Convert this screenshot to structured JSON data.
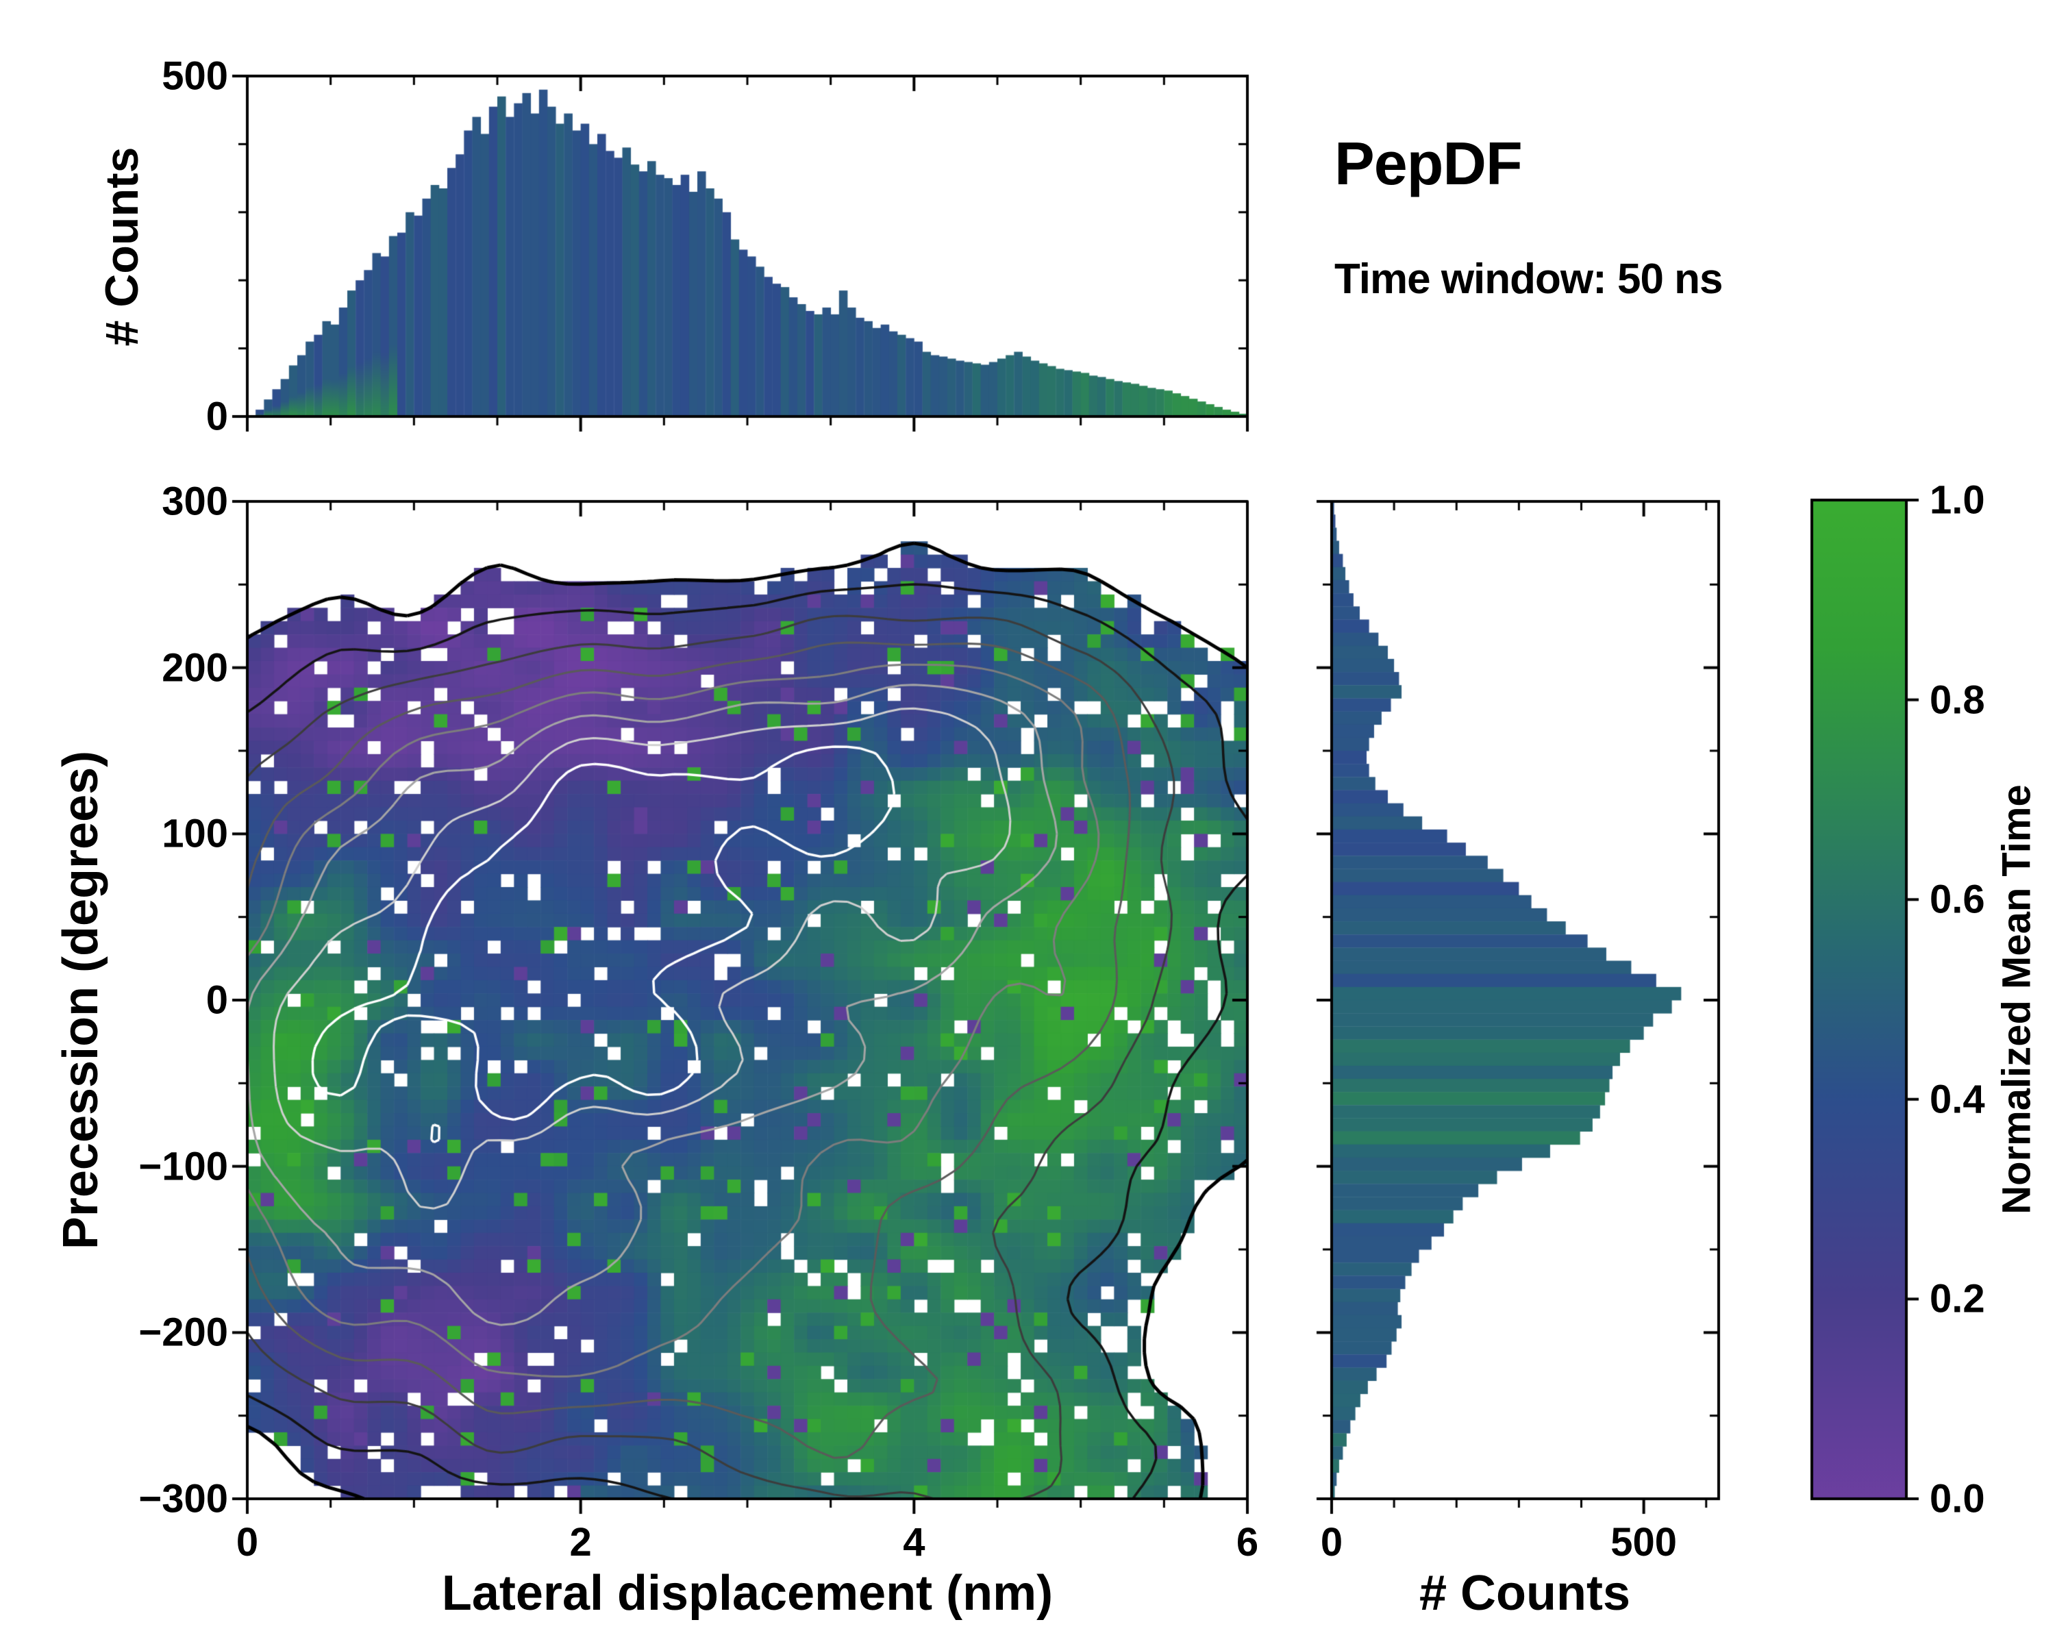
{
  "figure": {
    "title": "PepDF",
    "subtitle": "Time window: 50 ns",
    "background": "#ffffff"
  },
  "colors": {
    "spine": "#000000",
    "histogram_base": "#2d4e8c",
    "colormap_stops": [
      [
        0.0,
        "#6c3fa0"
      ],
      [
        0.2,
        "#483e8c"
      ],
      [
        0.4,
        "#2d4e8c"
      ],
      [
        0.55,
        "#286973"
      ],
      [
        0.7,
        "#2d8755"
      ],
      [
        0.85,
        "#32a037"
      ],
      [
        1.0,
        "#3aac32"
      ]
    ]
  },
  "colorbar": {
    "label": "Normalized Mean Time",
    "ticks": [
      "1.0",
      "0.8",
      "0.6",
      "0.4",
      "0.2",
      "0.0"
    ],
    "range": [
      0,
      1
    ]
  },
  "axes": {
    "top": {
      "ylabel": "# Counts",
      "yticks": [
        "500",
        "0"
      ],
      "xlim": [
        0,
        6
      ],
      "ylim": [
        0,
        500
      ]
    },
    "main": {
      "xlabel": "Lateral displacement (nm)",
      "ylabel": "Precession (degrees)",
      "xticks": [
        "0",
        "2",
        "4",
        "6"
      ],
      "yticks": [
        "300",
        "200",
        "100",
        "0",
        "−100",
        "−200",
        "−300"
      ],
      "xlim": [
        0,
        6
      ],
      "ylim": [
        -300,
        300
      ]
    },
    "right": {
      "xlabel": "# Counts",
      "xticks": [
        "0",
        "500"
      ],
      "xlim": [
        0,
        620
      ],
      "xtick_values": [
        0,
        500
      ]
    }
  },
  "chart_data": [
    {
      "type": "bar",
      "name": "top-marginal-histogram",
      "title": "",
      "xlabel": "Lateral displacement (nm)",
      "ylabel": "# Counts",
      "xlim": [
        0,
        6
      ],
      "ylim": [
        0,
        500
      ],
      "x_start": 0,
      "bin_width": 0.05,
      "values": [
        2,
        10,
        25,
        40,
        55,
        75,
        90,
        110,
        120,
        140,
        135,
        160,
        185,
        200,
        215,
        240,
        235,
        265,
        270,
        300,
        295,
        320,
        340,
        335,
        365,
        385,
        420,
        440,
        415,
        455,
        470,
        440,
        460,
        475,
        445,
        480,
        455,
        430,
        445,
        420,
        430,
        400,
        415,
        390,
        380,
        395,
        370,
        360,
        375,
        355,
        350,
        340,
        355,
        330,
        360,
        335,
        320,
        300,
        260,
        245,
        235,
        220,
        205,
        195,
        190,
        175,
        165,
        155,
        150,
        160,
        150,
        185,
        160,
        145,
        140,
        130,
        135,
        125,
        120,
        115,
        110,
        95,
        90,
        88,
        85,
        82,
        80,
        78,
        76,
        80,
        85,
        90,
        95,
        88,
        82,
        78,
        74,
        70,
        68,
        66,
        64,
        60,
        58,
        55,
        52,
        50,
        48,
        45,
        42,
        40,
        38,
        34,
        30,
        26,
        22,
        18,
        14,
        10,
        7,
        4
      ],
      "color_rule": {
        "base": 0.44,
        "jitter": 0.06,
        "tail_green_start": 3.9,
        "tail_green_gain": 0.33,
        "base_green_until": 0.9,
        "base_green_amount": 0.28
      }
    },
    {
      "type": "heatmap",
      "name": "joint-distribution-2d-histogram",
      "xlabel": "Lateral displacement (nm)",
      "ylabel": "Precession (degrees)",
      "value_label": "Normalized Mean Time",
      "xlim": [
        0,
        6
      ],
      "ylim": [
        -300,
        300
      ],
      "value_range": [
        0,
        1
      ],
      "bins": [
        75,
        75
      ],
      "seed": 7,
      "mask_threshold": 0.18,
      "density_noise_amp": 0.13,
      "density_blobs": [
        [
          1.8,
          0,
          1.5,
          120,
          1.0
        ],
        [
          2.5,
          140,
          1.6,
          55,
          0.45
        ],
        [
          4.6,
          30,
          1.1,
          110,
          0.55
        ],
        [
          4.3,
          170,
          1.0,
          60,
          0.35
        ],
        [
          1.3,
          -200,
          1.0,
          70,
          0.45
        ],
        [
          3.6,
          -220,
          1.1,
          80,
          0.4
        ],
        [
          4.6,
          -290,
          0.9,
          50,
          0.3
        ],
        [
          0.3,
          -60,
          0.5,
          90,
          0.4
        ],
        [
          1.35,
          35,
          0.18,
          22,
          0.18
        ],
        [
          1.9,
          -15,
          0.2,
          25,
          0.2
        ],
        [
          2.45,
          -30,
          0.18,
          22,
          0.16
        ],
        [
          1.15,
          -85,
          0.16,
          20,
          0.15
        ],
        [
          1.6,
          -60,
          0.15,
          18,
          0.14
        ],
        [
          2.2,
          55,
          0.15,
          20,
          0.14
        ]
      ],
      "value_base": 0.4,
      "value_noise_amp": 0.26,
      "color_regions": [
        [
          0.2,
          -60,
          0.45,
          80,
          0.5
        ],
        [
          4.9,
          30,
          0.9,
          100,
          0.45
        ],
        [
          3.7,
          -240,
          1.3,
          80,
          0.22
        ],
        [
          4.8,
          -295,
          0.8,
          40,
          0.22
        ],
        [
          1.2,
          185,
          1.3,
          70,
          -0.28
        ],
        [
          1.2,
          -215,
          0.9,
          55,
          -0.33
        ],
        [
          2.8,
          200,
          1.5,
          50,
          -0.15
        ],
        [
          3.2,
          -150,
          0.8,
          60,
          0.12
        ]
      ],
      "speckle": {
        "green_prob": 0.03,
        "purple_prob": 0.025,
        "hole_prob_low": 0.14,
        "hole_prob_mid": 0.08,
        "hole_prob_high": 0.045
      },
      "contour_levels": [
        {
          "level": 0.18,
          "color": "#000000",
          "lw": 5
        },
        {
          "level": 0.3,
          "color": "#141414",
          "lw": 3.5
        },
        {
          "level": 0.45,
          "color": "#3c3c3c",
          "lw": 3
        },
        {
          "level": 0.58,
          "color": "#5a5a5a",
          "lw": 3
        },
        {
          "level": 0.7,
          "color": "#7d7d7d",
          "lw": 3
        },
        {
          "level": 0.82,
          "color": "#a5a5a5",
          "lw": 3
        },
        {
          "level": 0.93,
          "color": "#cfcfcf",
          "lw": 3
        },
        {
          "level": 1.03,
          "color": "#ffffff",
          "lw": 3.5
        }
      ]
    },
    {
      "type": "bar",
      "orientation": "horizontal",
      "name": "right-marginal-histogram",
      "xlabel": "# Counts",
      "ylabel": "Precession (degrees)",
      "xlim": [
        0,
        620
      ],
      "ylim": [
        -300,
        300
      ],
      "y_start": 300,
      "bin_width": 8,
      "values": [
        4,
        6,
        8,
        12,
        18,
        22,
        28,
        35,
        45,
        60,
        75,
        90,
        100,
        108,
        112,
        95,
        80,
        68,
        60,
        56,
        60,
        70,
        90,
        115,
        145,
        185,
        215,
        250,
        275,
        300,
        320,
        345,
        375,
        410,
        440,
        480,
        520,
        560,
        545,
        515,
        500,
        478,
        462,
        450,
        445,
        438,
        430,
        418,
        398,
        350,
        305,
        265,
        235,
        210,
        195,
        180,
        160,
        140,
        128,
        118,
        110,
        106,
        112,
        104,
        96,
        88,
        72,
        58,
        46,
        38,
        30,
        24,
        18,
        12,
        8,
        5
      ],
      "color_rule": {
        "base": 0.44,
        "jitter": 0.06,
        "green_bump_center": -70,
        "green_bump_sigma": 45,
        "green_bump_amp": 0.16,
        "teal_bump_center": -280,
        "teal_bump_sigma": 30,
        "teal_bump_amp": 0.1
      }
    }
  ]
}
